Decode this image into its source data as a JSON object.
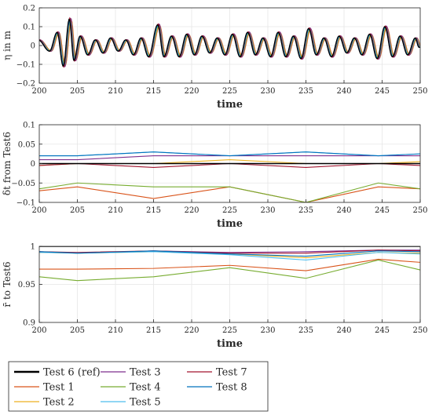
{
  "chart_data": [
    {
      "type": "line",
      "panel": "top",
      "xlabel": "time",
      "ylabel": "η in m",
      "xlim": [
        200,
        250
      ],
      "ylim": [
        -0.2,
        0.2
      ],
      "xticks": [
        200,
        205,
        210,
        215,
        220,
        225,
        230,
        235,
        240,
        245,
        250
      ],
      "xtick_labels": [
        "200",
        "205",
        "210",
        "215",
        "220",
        "225",
        "230",
        "235",
        "240",
        "245",
        "250"
      ],
      "yticks": [
        -0.2,
        -0.1,
        0,
        0.1,
        0.2
      ],
      "ytick_labels": [
        "−0.2",
        "−0.1",
        "0",
        "0.1",
        "0.2"
      ],
      "grid": true,
      "wave_series": [
        "Test 6 (ref)",
        "Test 1",
        "Test 2",
        "Test 3",
        "Test 4",
        "Test 5",
        "Test 7",
        "Test 8"
      ],
      "wave_keypoints": {
        "t": [
          200,
          201.5,
          202.5,
          203.3,
          204.1,
          204.7,
          205.5,
          206.5,
          207.5,
          208.5,
          209.5,
          210.5,
          211.5,
          212.5,
          213.5,
          214.5,
          215.7,
          216.5,
          217.5,
          218.5,
          219.5,
          220.5,
          221.5,
          222.5,
          223.5,
          224.5,
          225.5,
          226.5,
          227.5,
          228.5,
          229.5,
          230.5,
          231.5,
          232.5,
          233.5,
          234.5,
          235.5,
          236.5,
          237.5,
          238.5,
          239.5,
          240.5,
          241.5,
          242.5,
          243.5,
          244.5,
          245.5,
          246.5,
          247.5,
          248.5,
          249.5,
          250
        ],
        "eta": [
          0.03,
          -0.03,
          0.07,
          -0.11,
          0.14,
          -0.08,
          0.05,
          -0.05,
          0.03,
          -0.04,
          0.04,
          -0.03,
          0.03,
          -0.05,
          0.04,
          -0.06,
          0.11,
          -0.06,
          0.05,
          -0.06,
          0.06,
          -0.05,
          0.05,
          -0.04,
          0.04,
          -0.05,
          0.06,
          -0.06,
          0.07,
          -0.05,
          0.04,
          -0.06,
          0.07,
          -0.06,
          0.05,
          -0.07,
          0.09,
          -0.05,
          0.04,
          -0.06,
          0.05,
          -0.04,
          0.04,
          -0.05,
          0.06,
          -0.07,
          0.1,
          -0.06,
          0.05,
          -0.05,
          0.04,
          -0.01
        ]
      }
    },
    {
      "type": "line",
      "panel": "middle",
      "xlabel": "time",
      "ylabel": "δt from Test6",
      "xlim": [
        200,
        250
      ],
      "ylim": [
        -0.1,
        0.1
      ],
      "xticks": [
        200,
        205,
        210,
        215,
        220,
        225,
        230,
        235,
        240,
        245,
        250
      ],
      "xtick_labels": [
        "200",
        "205",
        "210",
        "215",
        "220",
        "225",
        "230",
        "235",
        "240",
        "245",
        "250"
      ],
      "yticks": [
        -0.1,
        -0.05,
        0,
        0.05,
        0.1
      ],
      "ytick_labels": [
        "−0.1",
        "−0.05",
        "0",
        "0.05",
        "0.1"
      ],
      "grid": true,
      "x": [
        200,
        205,
        215,
        225,
        235,
        244.5,
        250
      ],
      "series": [
        {
          "name": "Test 6 (ref)",
          "values": [
            0,
            0,
            0,
            0,
            0,
            0,
            0
          ]
        },
        {
          "name": "Test 1",
          "values": [
            -0.07,
            -0.06,
            -0.09,
            -0.06,
            -0.1,
            -0.06,
            -0.065
          ]
        },
        {
          "name": "Test 2",
          "values": [
            -0.005,
            0,
            0,
            0.01,
            0,
            0,
            0.005
          ]
        },
        {
          "name": "Test 3",
          "values": [
            0.01,
            0.01,
            0.02,
            0.02,
            0.02,
            0.02,
            0.02
          ]
        },
        {
          "name": "Test 4",
          "values": [
            -0.065,
            -0.05,
            -0.06,
            -0.06,
            -0.1,
            -0.05,
            -0.065
          ]
        },
        {
          "name": "Test 5",
          "values": [
            0.02,
            0.02,
            0.03,
            0.02,
            0.03,
            0.02,
            0.025
          ]
        },
        {
          "name": "Test 7",
          "values": [
            -0.005,
            0,
            -0.01,
            0,
            -0.01,
            0,
            -0.005
          ]
        },
        {
          "name": "Test 8",
          "values": [
            0.02,
            0.02,
            0.03,
            0.02,
            0.03,
            0.02,
            0.025
          ]
        }
      ]
    },
    {
      "type": "line",
      "panel": "bottom",
      "xlabel": "time",
      "ylabel": "r̄ to Test6",
      "xlim": [
        200,
        250
      ],
      "ylim": [
        0.9,
        1
      ],
      "xticks": [
        200,
        205,
        210,
        215,
        220,
        225,
        230,
        235,
        240,
        245,
        250
      ],
      "xtick_labels": [
        "200",
        "205",
        "210",
        "215",
        "220",
        "225",
        "230",
        "235",
        "240",
        "245",
        "250"
      ],
      "yticks": [
        0.9,
        0.95,
        1
      ],
      "ytick_labels": [
        "0.9",
        "0.95",
        "1"
      ],
      "grid": true,
      "x": [
        200,
        205,
        215,
        225,
        235,
        244.5,
        250
      ],
      "series": [
        {
          "name": "Test 6 (ref)",
          "values": [
            1,
            1,
            1,
            1,
            1,
            1,
            1
          ]
        },
        {
          "name": "Test 1",
          "values": [
            0.97,
            0.97,
            0.971,
            0.975,
            0.968,
            0.983,
            0.979
          ]
        },
        {
          "name": "Test 2",
          "values": [
            0.992,
            0.991,
            0.993,
            0.99,
            0.985,
            0.992,
            0.991
          ]
        },
        {
          "name": "Test 3",
          "values": [
            0.993,
            0.991,
            0.994,
            0.992,
            0.993,
            0.995,
            0.995
          ]
        },
        {
          "name": "Test 4",
          "values": [
            0.96,
            0.955,
            0.96,
            0.972,
            0.958,
            0.982,
            0.969
          ]
        },
        {
          "name": "Test 5",
          "values": [
            0.992,
            0.991,
            0.993,
            0.989,
            0.982,
            0.992,
            0.99
          ]
        },
        {
          "name": "Test 7",
          "values": [
            0.993,
            0.992,
            0.994,
            0.991,
            0.991,
            0.995,
            0.994
          ]
        },
        {
          "name": "Test 8",
          "values": [
            0.993,
            0.991,
            0.994,
            0.99,
            0.987,
            0.994,
            0.993
          ]
        }
      ]
    }
  ],
  "legend": {
    "columns": 3,
    "entries": [
      {
        "name": "Test 6 (ref)",
        "color": "#000000",
        "thick": true
      },
      {
        "name": "Test 1",
        "color": "#D95319"
      },
      {
        "name": "Test 2",
        "color": "#EDB120"
      },
      {
        "name": "Test 3",
        "color": "#7E2F8E"
      },
      {
        "name": "Test 4",
        "color": "#77AC30"
      },
      {
        "name": "Test 5",
        "color": "#4DBEEE"
      },
      {
        "name": "Test 7",
        "color": "#A2142F"
      },
      {
        "name": "Test 8",
        "color": "#0072BD"
      }
    ]
  },
  "colors": {
    "Test 6 (ref)": "#000000",
    "Test 1": "#D95319",
    "Test 2": "#EDB120",
    "Test 3": "#7E2F8E",
    "Test 4": "#77AC30",
    "Test 5": "#4DBEEE",
    "Test 7": "#A2142F",
    "Test 8": "#0072BD"
  }
}
